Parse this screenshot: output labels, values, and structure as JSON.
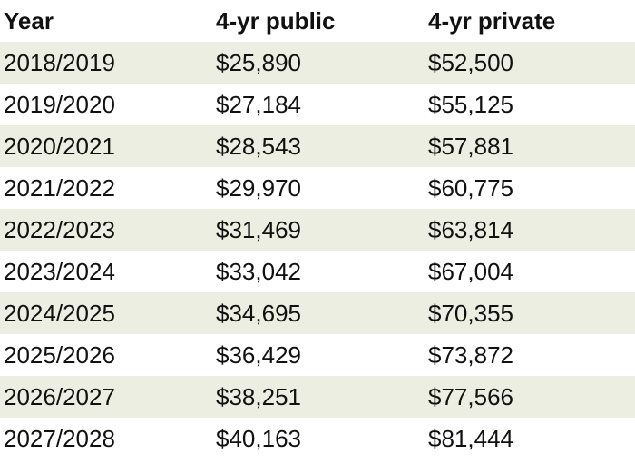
{
  "table": {
    "headers": [
      "Year",
      "4-yr public",
      "4-yr private"
    ],
    "rows": [
      [
        "2018/2019",
        "$25,890",
        "$52,500"
      ],
      [
        "2019/2020",
        "$27,184",
        "$55,125"
      ],
      [
        "2020/2021",
        "$28,543",
        "$57,881"
      ],
      [
        "2021/2022",
        "$29,970",
        "$60,775"
      ],
      [
        "2022/2023",
        "$31,469",
        "$63,814"
      ],
      [
        "2023/2024",
        "$33,042",
        "$67,004"
      ],
      [
        "2024/2025",
        "$34,695",
        "$70,355"
      ],
      [
        "2025/2026",
        "$36,429",
        "$73,872"
      ],
      [
        "2026/2027",
        "$38,251",
        "$77,566"
      ],
      [
        "2027/2028",
        "$40,163",
        "$81,444"
      ]
    ],
    "row_shading_color": "#ebeee0"
  }
}
